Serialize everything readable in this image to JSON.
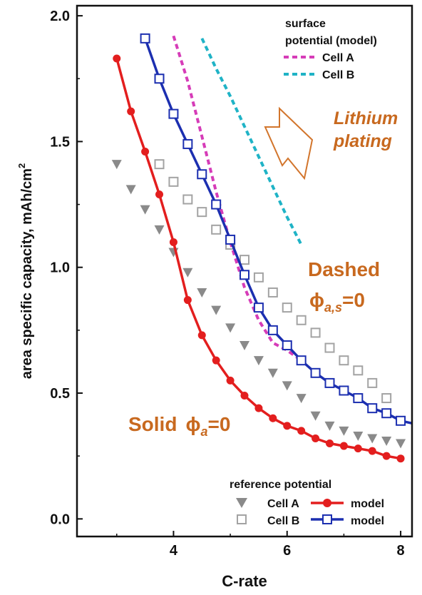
{
  "chart_data": {
    "type": "line",
    "xlabel": "C-rate",
    "ylabel": "area specific capacity, mAh/cm",
    "ylabel_superscript": "2",
    "xlim": [
      2.3,
      8.2
    ],
    "ylim": [
      -0.07,
      2.04
    ],
    "x_ticks": [
      4,
      6,
      8
    ],
    "y_ticks": [
      0.0,
      0.5,
      1.0,
      1.5,
      2.0
    ],
    "x_tick_labels": [
      "4",
      "6",
      "8"
    ],
    "y_tick_labels": [
      "0.0",
      "0.5",
      "1.0",
      "1.5",
      "2.0"
    ],
    "grid": false,
    "series": [
      {
        "name": "Cell A",
        "kind": "reference-markers",
        "marker": "triangle-down",
        "color": "#8a8a8a",
        "x": [
          3.0,
          3.25,
          3.5,
          3.75,
          4.0,
          4.25,
          4.5,
          4.75,
          5.0,
          5.25,
          5.5,
          5.75,
          6.0,
          6.25,
          6.5,
          6.75,
          7.0,
          7.25,
          7.5,
          7.75,
          8.0
        ],
        "y": [
          1.41,
          1.31,
          1.23,
          1.15,
          1.06,
          0.98,
          0.9,
          0.83,
          0.76,
          0.69,
          0.63,
          0.58,
          0.53,
          0.48,
          0.41,
          0.37,
          0.35,
          0.33,
          0.32,
          0.31,
          0.3
        ]
      },
      {
        "name": "model",
        "kind": "model-solid-cell-a",
        "color": "#e31e1e",
        "x": [
          3.0,
          3.25,
          3.5,
          3.75,
          4.0,
          4.25,
          4.5,
          4.75,
          5.0,
          5.25,
          5.5,
          5.75,
          6.0,
          6.25,
          6.5,
          6.75,
          7.0,
          7.25,
          7.5,
          7.75,
          8.0
        ],
        "y": [
          1.83,
          1.62,
          1.46,
          1.29,
          1.1,
          0.87,
          0.73,
          0.63,
          0.55,
          0.49,
          0.44,
          0.4,
          0.37,
          0.35,
          0.32,
          0.3,
          0.29,
          0.28,
          0.27,
          0.25,
          0.24
        ]
      },
      {
        "name": "Cell B",
        "kind": "reference-markers",
        "marker": "square-open",
        "color": "#a3a3a3",
        "x": [
          3.75,
          4.0,
          4.25,
          4.5,
          4.75,
          5.0,
          5.25,
          5.5,
          5.75,
          6.0,
          6.25,
          6.5,
          6.75,
          7.0,
          7.25,
          7.5,
          7.75
        ],
        "y": [
          1.41,
          1.34,
          1.27,
          1.22,
          1.15,
          1.09,
          1.03,
          0.96,
          0.9,
          0.84,
          0.79,
          0.74,
          0.68,
          0.63,
          0.59,
          0.54,
          0.48
        ]
      },
      {
        "name": "model",
        "kind": "model-solid-cell-b",
        "color": "#1c2fb0",
        "x": [
          3.5,
          3.75,
          4.0,
          4.25,
          4.5,
          4.75,
          5.0,
          5.25,
          5.5,
          5.75,
          6.0,
          6.25,
          6.5,
          6.75,
          7.0,
          7.25,
          7.5,
          7.75,
          8.0,
          8.2
        ],
        "y": [
          1.91,
          1.75,
          1.61,
          1.49,
          1.37,
          1.25,
          1.11,
          0.97,
          0.84,
          0.75,
          0.69,
          0.63,
          0.58,
          0.54,
          0.51,
          0.48,
          0.44,
          0.42,
          0.39,
          0.38
        ]
      },
      {
        "name": "Cell A",
        "kind": "surface-dashed",
        "color": "#d63cb8",
        "x": [
          4.0,
          4.25,
          4.5,
          4.75,
          5.0,
          5.25,
          5.5,
          5.75,
          6.0,
          6.25
        ],
        "y": [
          1.92,
          1.74,
          1.52,
          1.3,
          1.1,
          0.92,
          0.79,
          0.7,
          0.67,
          0.63
        ]
      },
      {
        "name": "Cell B",
        "kind": "surface-dashed",
        "color": "#1fb3c6",
        "x": [
          4.5,
          4.75,
          5.0,
          5.25,
          5.5,
          5.75,
          6.0,
          6.25
        ],
        "y": [
          1.91,
          1.79,
          1.68,
          1.56,
          1.44,
          1.32,
          1.2,
          1.09
        ]
      }
    ],
    "legend_top": {
      "title_line1": "surface",
      "title_line2": "potential (model)",
      "entries": [
        "Cell A",
        "Cell B"
      ]
    },
    "legend_bottom": {
      "title": "reference potential",
      "row1_marker_label": "Cell A",
      "row1_line_label": "model",
      "row2_marker_label": "Cell B",
      "row2_line_label": "model"
    },
    "annotations": {
      "plating_line1": "Lithium",
      "plating_line2": "plating",
      "dashed_word": "Dashed",
      "dashed_phi": "ϕ",
      "dashed_sub": "a,s",
      "dashed_eq": "=0",
      "solid_word": "Solid",
      "solid_phi": "ϕ",
      "solid_sub": "a",
      "solid_eq": "=0"
    }
  }
}
